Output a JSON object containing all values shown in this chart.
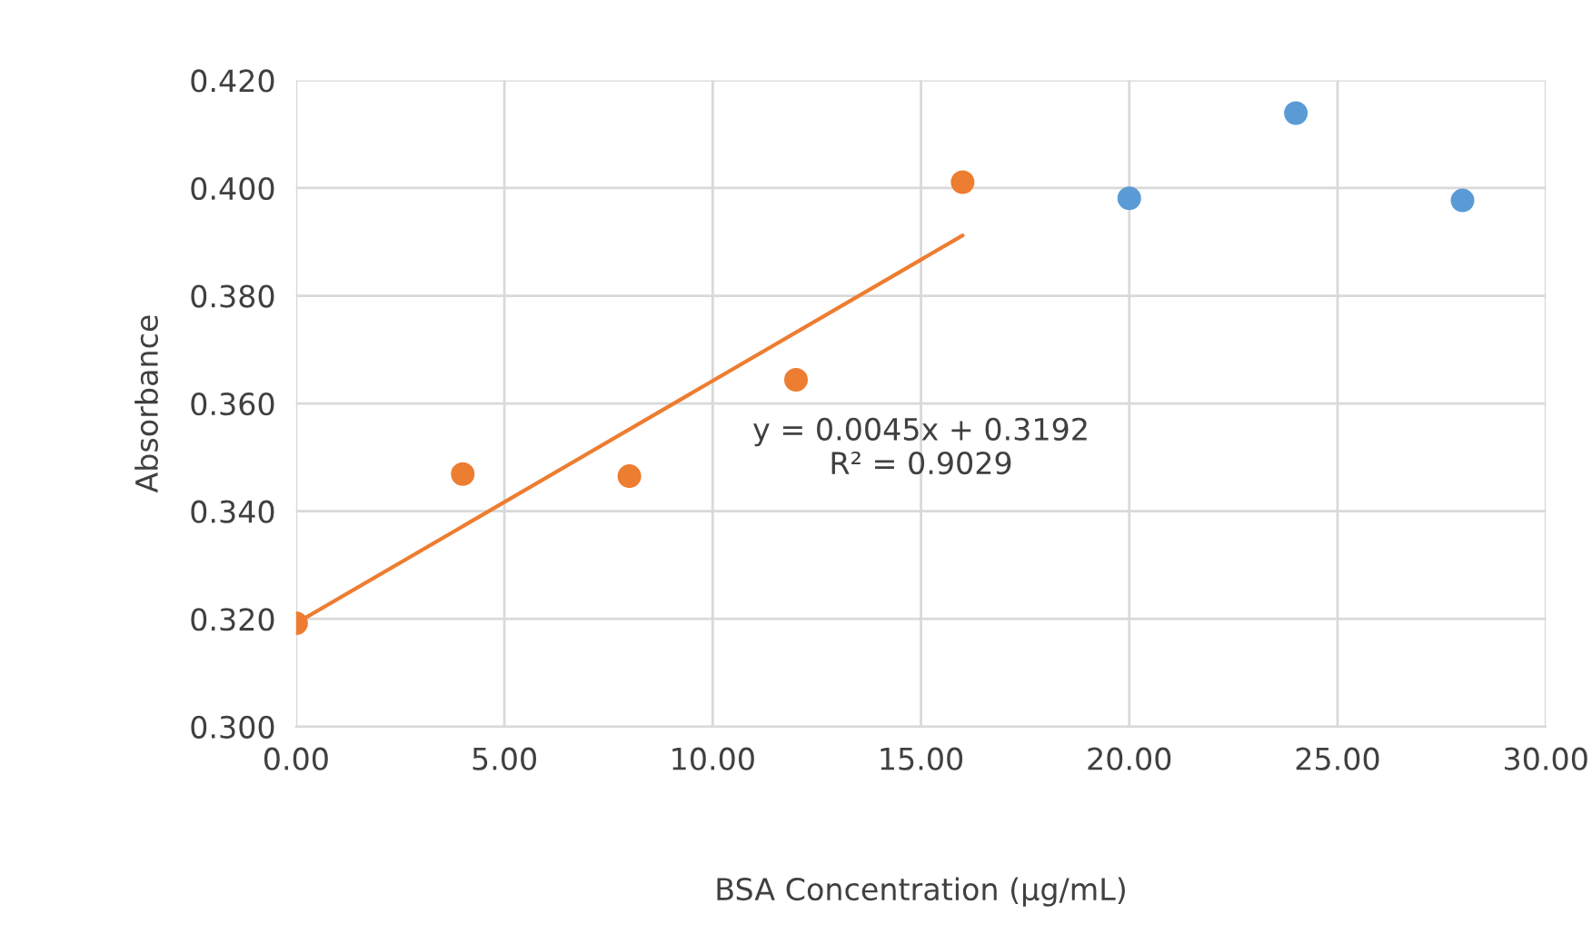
{
  "chart_data": {
    "type": "scatter",
    "xlabel": "BSA Concentration (µg/mL)",
    "ylabel": "Absorbance",
    "series": [
      {
        "color": "#5b9bd5",
        "marker": "circle",
        "x": [
          20,
          24,
          28
        ],
        "values": [
          0.3981,
          0.4139,
          0.3977
        ]
      },
      {
        "color": "#ed7d31",
        "marker": "circle",
        "x": [
          0,
          4,
          8,
          12,
          16
        ],
        "values": [
          0.3192,
          0.3469,
          0.3465,
          0.3644,
          0.4011
        ]
      },
      {
        "type": "line",
        "color": "#ed7d31",
        "x": [
          0,
          16
        ],
        "values": [
          0.3192,
          0.3912
        ]
      }
    ],
    "annotations": [
      "y = 0.0045x + 0.3192\nR² = 0.9029"
    ],
    "xlim": [
      0,
      30
    ],
    "ylim": [
      0.3,
      0.42
    ],
    "xticks": [
      {
        "value": 0,
        "label": "0.00"
      },
      {
        "value": 5,
        "label": "5.00"
      },
      {
        "value": 10,
        "label": "10.00"
      },
      {
        "value": 15,
        "label": "15.00"
      },
      {
        "value": 20,
        "label": "20.00"
      },
      {
        "value": 25,
        "label": "25.00"
      },
      {
        "value": 30,
        "label": "30.00"
      }
    ],
    "yticks": [
      {
        "value": 0.3,
        "label": "0.300"
      },
      {
        "value": 0.32,
        "label": "0.320"
      },
      {
        "value": 0.34,
        "label": "0.340"
      },
      {
        "value": 0.36,
        "label": "0.360"
      },
      {
        "value": 0.38,
        "label": "0.380"
      },
      {
        "value": 0.4,
        "label": "0.400"
      },
      {
        "value": 0.42,
        "label": "0.420"
      }
    ],
    "grid": true
  }
}
